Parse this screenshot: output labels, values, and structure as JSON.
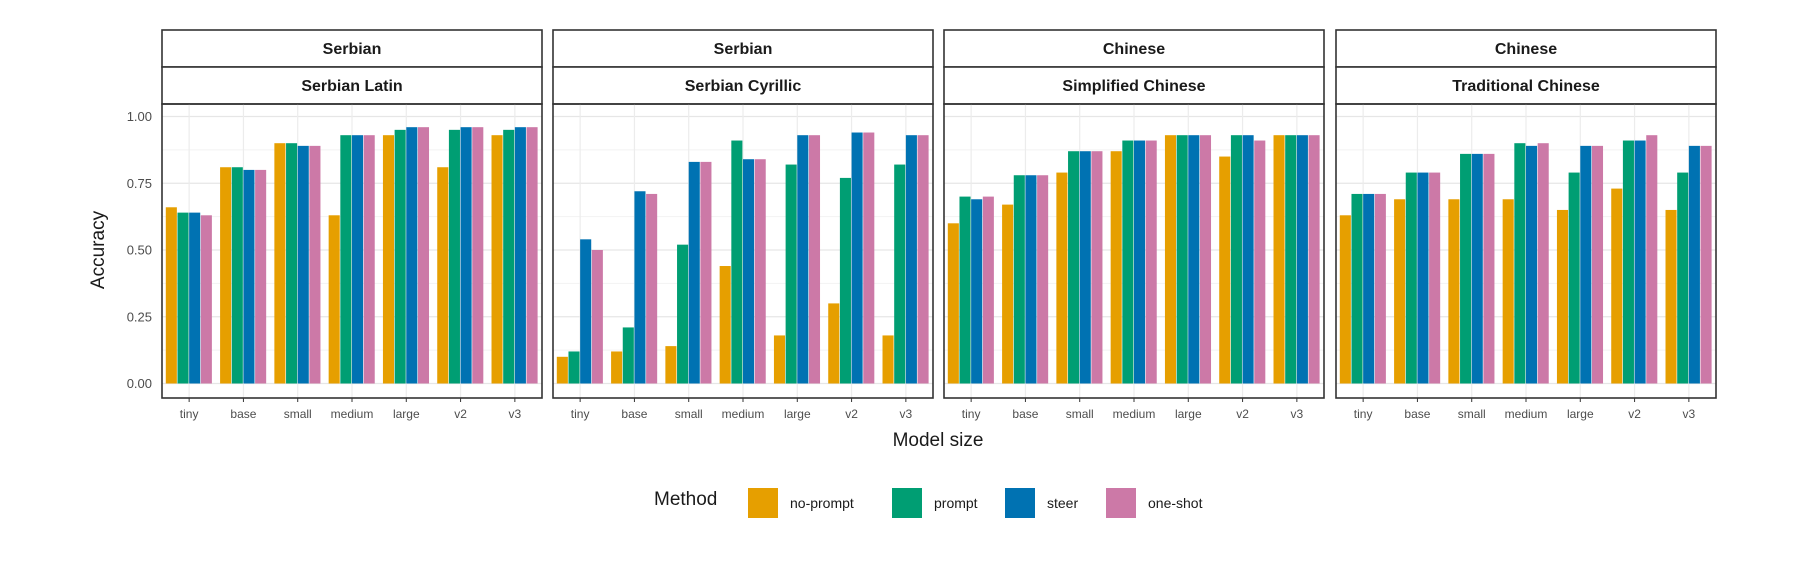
{
  "chart_data": {
    "type": "bar",
    "ylabel": "Accuracy",
    "xlabel": "Model size",
    "ylim": [
      0,
      1.05
    ],
    "yticks": [
      "0.00",
      "0.25",
      "0.50",
      "0.75",
      "1.00"
    ],
    "ytick_values": [
      0,
      0.25,
      0.5,
      0.75,
      1.0
    ],
    "categories": [
      "tiny",
      "base",
      "small",
      "medium",
      "large",
      "v2",
      "v3"
    ],
    "grid": true,
    "legend": {
      "title": "Method",
      "position": "bottom",
      "entries": [
        {
          "name": "no-prompt",
          "color": "#E69F00"
        },
        {
          "name": "prompt",
          "color": "#009E73"
        },
        {
          "name": "steer",
          "color": "#0072B2"
        },
        {
          "name": "one-shot",
          "color": "#CC79A7"
        }
      ]
    },
    "panels": [
      {
        "group": "Serbian",
        "label": "Serbian Latin",
        "series": [
          {
            "name": "no-prompt",
            "values": [
              0.66,
              0.81,
              0.9,
              0.63,
              0.93,
              0.81,
              0.93
            ]
          },
          {
            "name": "prompt",
            "values": [
              0.64,
              0.81,
              0.9,
              0.93,
              0.95,
              0.95,
              0.95
            ]
          },
          {
            "name": "steer",
            "values": [
              0.64,
              0.8,
              0.89,
              0.93,
              0.96,
              0.96,
              0.96
            ]
          },
          {
            "name": "one-shot",
            "values": [
              0.63,
              0.8,
              0.89,
              0.93,
              0.96,
              0.96,
              0.96
            ]
          }
        ]
      },
      {
        "group": "Serbian",
        "label": "Serbian Cyrillic",
        "series": [
          {
            "name": "no-prompt",
            "values": [
              0.1,
              0.12,
              0.14,
              0.44,
              0.18,
              0.3,
              0.18
            ]
          },
          {
            "name": "prompt",
            "values": [
              0.12,
              0.21,
              0.52,
              0.91,
              0.82,
              0.77,
              0.82
            ]
          },
          {
            "name": "steer",
            "values": [
              0.54,
              0.72,
              0.83,
              0.84,
              0.93,
              0.94,
              0.93
            ]
          },
          {
            "name": "one-shot",
            "values": [
              0.5,
              0.71,
              0.83,
              0.84,
              0.93,
              0.94,
              0.93
            ]
          }
        ]
      },
      {
        "group": "Chinese",
        "label": "Simplified Chinese",
        "series": [
          {
            "name": "no-prompt",
            "values": [
              0.6,
              0.67,
              0.79,
              0.87,
              0.93,
              0.85,
              0.93
            ]
          },
          {
            "name": "prompt",
            "values": [
              0.7,
              0.78,
              0.87,
              0.91,
              0.93,
              0.93,
              0.93
            ]
          },
          {
            "name": "steer",
            "values": [
              0.69,
              0.78,
              0.87,
              0.91,
              0.93,
              0.93,
              0.93
            ]
          },
          {
            "name": "one-shot",
            "values": [
              0.7,
              0.78,
              0.87,
              0.91,
              0.93,
              0.91,
              0.93
            ]
          }
        ]
      },
      {
        "group": "Chinese",
        "label": "Traditional Chinese",
        "series": [
          {
            "name": "no-prompt",
            "values": [
              0.63,
              0.69,
              0.69,
              0.69,
              0.65,
              0.73,
              0.65
            ]
          },
          {
            "name": "prompt",
            "values": [
              0.71,
              0.79,
              0.86,
              0.9,
              0.79,
              0.91,
              0.79
            ]
          },
          {
            "name": "steer",
            "values": [
              0.71,
              0.79,
              0.86,
              0.89,
              0.89,
              0.91,
              0.89
            ]
          },
          {
            "name": "one-shot",
            "values": [
              0.71,
              0.79,
              0.86,
              0.9,
              0.89,
              0.93,
              0.89
            ]
          }
        ]
      }
    ]
  }
}
